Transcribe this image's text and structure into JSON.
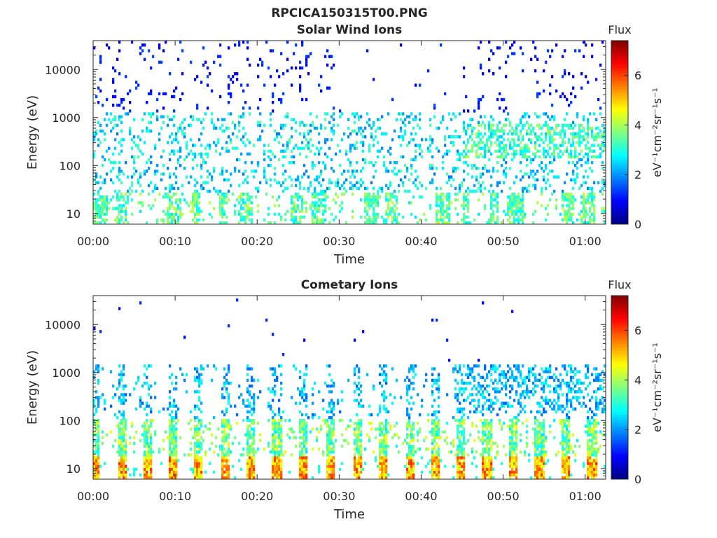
{
  "figure": {
    "suptitle": "RPCICA150315T00.PNG"
  },
  "chart_data": [
    {
      "type": "heatmap",
      "title": "Solar Wind Ions",
      "xlabel": "Time",
      "ylabel": "Energy (eV)",
      "y_scale": "log",
      "xlim_minutes": [
        0,
        62.5
      ],
      "ylim_eV": [
        6,
        40000
      ],
      "x_ticks": [
        "00:00",
        "00:10",
        "00:20",
        "00:30",
        "00:40",
        "00:50",
        "01:00"
      ],
      "x_tick_minutes": [
        0,
        10,
        20,
        30,
        40,
        50,
        60
      ],
      "y_ticks": [
        "10",
        "100",
        "1000",
        "10000"
      ],
      "y_tick_values": [
        10,
        100,
        1000,
        10000
      ],
      "colorbar": {
        "title": "Flux",
        "label": "eV⁻¹cm⁻²sr⁻¹s⁻¹",
        "range": [
          0,
          7.4
        ],
        "ticks": [
          "0",
          "2",
          "4",
          "6"
        ],
        "tick_values": [
          0,
          2,
          4,
          6
        ],
        "colormap": "jet"
      },
      "description_profile": {
        "low_energy_band_eV": [
          6,
          28
        ],
        "low_band_flux": [
          2.5,
          4.2
        ],
        "mid_band_eV": [
          100,
          1000
        ],
        "sparse_high_energy_eV": [
          1000,
          40000
        ]
      },
      "grid": false
    },
    {
      "type": "heatmap",
      "title": "Cometary Ions",
      "xlabel": "Time",
      "ylabel": "Energy (eV)",
      "y_scale": "log",
      "xlim_minutes": [
        0,
        62.5
      ],
      "ylim_eV": [
        6,
        40000
      ],
      "x_ticks": [
        "00:00",
        "00:10",
        "00:20",
        "00:30",
        "00:40",
        "00:50",
        "01:00"
      ],
      "x_tick_minutes": [
        0,
        10,
        20,
        30,
        40,
        50,
        60
      ],
      "y_ticks": [
        "10",
        "100",
        "1000",
        "10000"
      ],
      "y_tick_values": [
        10,
        100,
        1000,
        10000
      ],
      "colorbar": {
        "title": "Flux",
        "label": "eV⁻¹cm⁻²sr⁻¹s⁻¹",
        "range": [
          0,
          7.4
        ],
        "ticks": [
          "0",
          "2",
          "4",
          "6"
        ],
        "tick_values": [
          0,
          2,
          4,
          6
        ],
        "colormap": "jet"
      },
      "bursts_minutes": [
        0.3,
        3.5,
        6.6,
        9.7,
        12.8,
        16.2,
        19.3,
        22.4,
        25.7,
        28.9,
        32.2,
        35.3,
        38.6,
        41.8,
        44.8,
        48.0,
        51.3,
        54.4,
        57.6,
        60.8
      ],
      "grid": false
    }
  ]
}
